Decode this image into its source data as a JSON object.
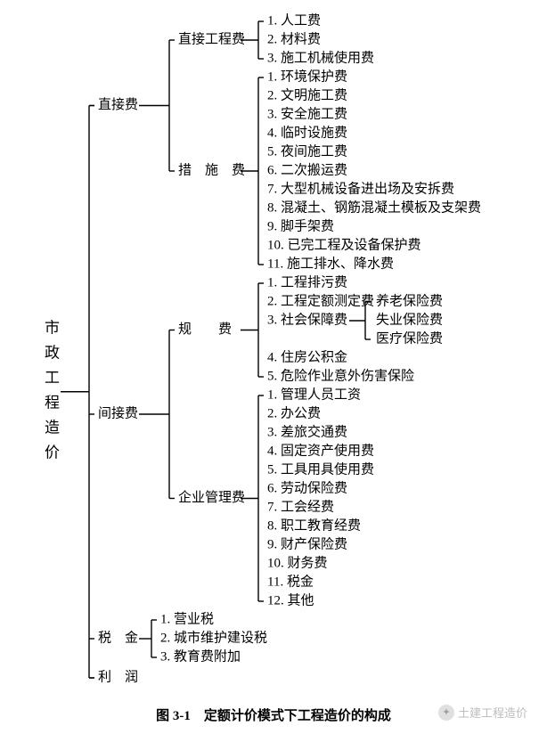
{
  "caption": "图 3-1　定额计价模式下工程造价的构成",
  "watermark": "土建工程造价",
  "style": {
    "bg": "#ffffff",
    "line_color": "#000000",
    "line_width": 1.4,
    "font_size": 15,
    "caption_font_size": 15,
    "caption_weight": "bold",
    "root_letter_spacing": 12
  },
  "tree": {
    "root": "市政工程造价",
    "children": [
      {
        "label": "直接费",
        "children": [
          {
            "label": "直接工程费",
            "items": [
              "人工费",
              "材料费",
              "施工机械使用费"
            ]
          },
          {
            "label": "措　施　费",
            "items": [
              "环境保护费",
              "文明施工费",
              "安全施工费",
              "临时设施费",
              "夜间施工费",
              "二次搬运费",
              "大型机械设备进出场及安拆费",
              "混凝土、钢筋混凝土模板及支架费",
              "脚手架费",
              "已完工程及设备保护费",
              "施工排水、降水费"
            ]
          }
        ]
      },
      {
        "label": "间接费",
        "children": [
          {
            "label": "规　　费",
            "items": [
              "工程排污费",
              "工程定额测定费",
              "社会保障费",
              "住房公积金",
              "危险作业意外伤害保险"
            ],
            "sub_of_item_index": 2,
            "sub_items": [
              "养老保险费",
              "失业保险费",
              "医疗保险费"
            ]
          },
          {
            "label": "企业管理费",
            "items": [
              "管理人员工资",
              "办公费",
              "差旅交通费",
              "固定资产使用费",
              "工具用具使用费",
              "劳动保险费",
              "工会经费",
              "职工教育经费",
              "财产保险费",
              "财务费",
              "税金",
              "其他"
            ]
          }
        ]
      },
      {
        "label": "税　金",
        "items": [
          "营业税",
          "城市维护建设税",
          "教育费附加"
        ]
      },
      {
        "label": "利　润"
      }
    ]
  }
}
